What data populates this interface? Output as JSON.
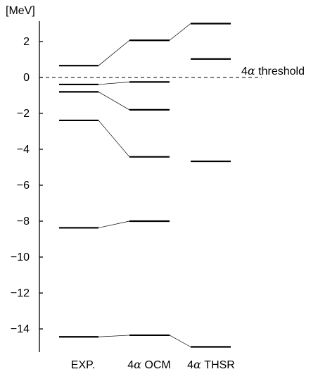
{
  "chart_data": {
    "type": "level-scheme",
    "unit_label": "[MeV]",
    "ylim": [
      -15.1,
      3.2
    ],
    "yticks": [
      2,
      0,
      -2,
      -4,
      -6,
      -8,
      -10,
      -12,
      -14
    ],
    "ytick_labels": [
      "2",
      "0",
      "−2",
      "−4",
      "−6",
      "−8",
      "−10",
      "−12",
      "−14"
    ],
    "threshold": {
      "value": 0,
      "prefix": "4",
      "greek": "α",
      "suffix": " threshold"
    },
    "columns": [
      {
        "label_prefix": "",
        "greek": "",
        "label_suffix": "EXP.",
        "levels": [
          0.66,
          -0.39,
          -0.8,
          -2.39,
          -8.37,
          -14.44
        ]
      },
      {
        "label_prefix": "4",
        "greek": "α",
        "label_suffix": " OCM",
        "levels": [
          2.07,
          -0.25,
          -1.8,
          -4.42,
          -8.0,
          -14.35
        ]
      },
      {
        "label_prefix": "4",
        "greek": "α",
        "label_suffix": " THSR",
        "levels": [
          3.0,
          1.03,
          -4.67,
          -15.0
        ]
      }
    ],
    "connections": [
      {
        "from": [
          0,
          0
        ],
        "to": [
          1,
          0
        ]
      },
      {
        "from": [
          0,
          1
        ],
        "to": [
          1,
          1
        ]
      },
      {
        "from": [
          0,
          2
        ],
        "to": [
          1,
          2
        ]
      },
      {
        "from": [
          0,
          3
        ],
        "to": [
          1,
          3
        ]
      },
      {
        "from": [
          0,
          4
        ],
        "to": [
          1,
          4
        ]
      },
      {
        "from": [
          0,
          5
        ],
        "to": [
          1,
          5
        ]
      },
      {
        "from": [
          1,
          0
        ],
        "to": [
          2,
          0
        ]
      },
      {
        "from": [
          1,
          5
        ],
        "to": [
          2,
          3
        ]
      }
    ]
  }
}
